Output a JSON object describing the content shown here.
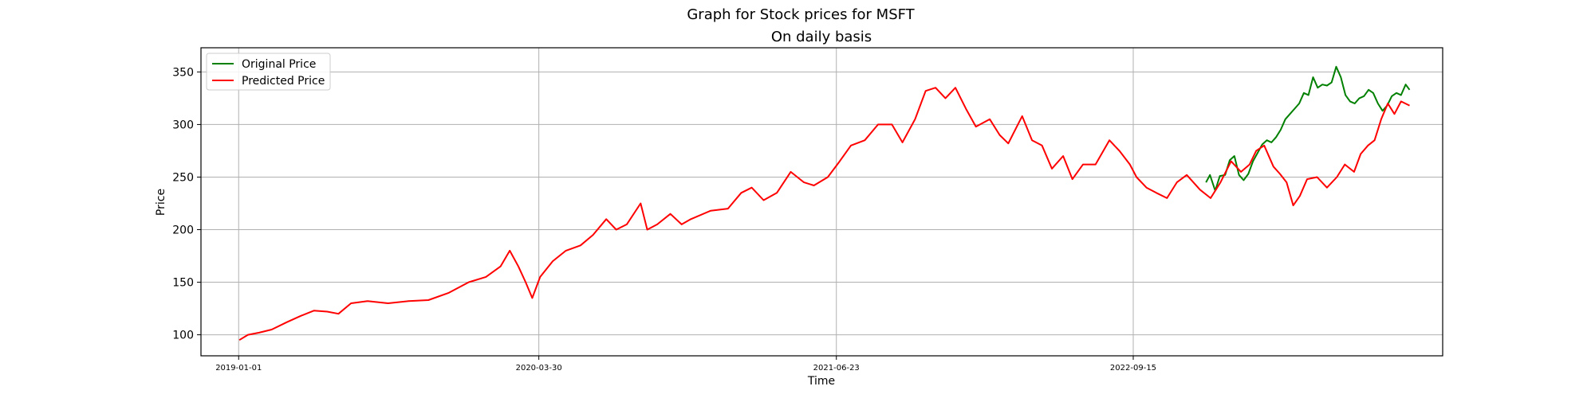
{
  "figure": {
    "suptitle": "Graph for Stock prices for MSFT"
  },
  "chart_data": {
    "type": "line",
    "title": "On daily basis",
    "xlabel": "Time",
    "ylabel": "Price",
    "x_type": "date",
    "xlim": [
      "2018-11-05",
      "2023-12-27"
    ],
    "ylim": [
      80,
      373
    ],
    "xticks": [
      "2019-01-01",
      "2020-03-30",
      "2021-06-23",
      "2022-09-15"
    ],
    "yticks": [
      100,
      150,
      200,
      250,
      300,
      350
    ],
    "grid": true,
    "legend_position": "top-left",
    "series": [
      {
        "name": "Original Price",
        "color": "#008000",
        "points": [
          [
            "2023-01-03",
            245
          ],
          [
            "2023-01-09",
            252
          ],
          [
            "2023-01-17",
            237
          ],
          [
            "2023-01-24",
            251
          ],
          [
            "2023-02-01",
            252
          ],
          [
            "2023-02-08",
            266
          ],
          [
            "2023-02-15",
            270
          ],
          [
            "2023-02-22",
            252
          ],
          [
            "2023-03-01",
            247
          ],
          [
            "2023-03-08",
            253
          ],
          [
            "2023-03-15",
            265
          ],
          [
            "2023-03-22",
            273
          ],
          [
            "2023-03-29",
            281
          ],
          [
            "2023-04-05",
            285
          ],
          [
            "2023-04-12",
            283
          ],
          [
            "2023-04-19",
            288
          ],
          [
            "2023-04-26",
            295
          ],
          [
            "2023-05-03",
            305
          ],
          [
            "2023-05-10",
            310
          ],
          [
            "2023-05-17",
            315
          ],
          [
            "2023-05-24",
            320
          ],
          [
            "2023-05-31",
            330
          ],
          [
            "2023-06-07",
            328
          ],
          [
            "2023-06-14",
            345
          ],
          [
            "2023-06-21",
            335
          ],
          [
            "2023-06-28",
            338
          ],
          [
            "2023-07-05",
            337
          ],
          [
            "2023-07-12",
            340
          ],
          [
            "2023-07-19",
            355
          ],
          [
            "2023-07-26",
            345
          ],
          [
            "2023-08-02",
            328
          ],
          [
            "2023-08-09",
            322
          ],
          [
            "2023-08-16",
            320
          ],
          [
            "2023-08-23",
            325
          ],
          [
            "2023-08-30",
            327
          ],
          [
            "2023-09-06",
            333
          ],
          [
            "2023-09-13",
            330
          ],
          [
            "2023-09-20",
            320
          ],
          [
            "2023-09-27",
            313
          ],
          [
            "2023-10-04",
            318
          ],
          [
            "2023-10-11",
            327
          ],
          [
            "2023-10-18",
            330
          ],
          [
            "2023-10-25",
            328
          ],
          [
            "2023-11-01",
            338
          ],
          [
            "2023-11-07",
            333
          ]
        ]
      },
      {
        "name": "Predicted Price",
        "color": "#ff0000",
        "points": [
          [
            "2019-01-02",
            95
          ],
          [
            "2019-01-15",
            100
          ],
          [
            "2019-02-01",
            102
          ],
          [
            "2019-02-20",
            105
          ],
          [
            "2019-03-15",
            112
          ],
          [
            "2019-04-05",
            118
          ],
          [
            "2019-04-25",
            123
          ],
          [
            "2019-05-15",
            122
          ],
          [
            "2019-06-01",
            120
          ],
          [
            "2019-06-20",
            130
          ],
          [
            "2019-07-15",
            132
          ],
          [
            "2019-08-15",
            130
          ],
          [
            "2019-09-15",
            132
          ],
          [
            "2019-10-15",
            133
          ],
          [
            "2019-11-15",
            140
          ],
          [
            "2019-12-15",
            150
          ],
          [
            "2020-01-10",
            155
          ],
          [
            "2020-02-01",
            165
          ],
          [
            "2020-02-15",
            180
          ],
          [
            "2020-02-28",
            165
          ],
          [
            "2020-03-10",
            150
          ],
          [
            "2020-03-20",
            135
          ],
          [
            "2020-04-01",
            155
          ],
          [
            "2020-04-20",
            170
          ],
          [
            "2020-05-10",
            180
          ],
          [
            "2020-06-01",
            185
          ],
          [
            "2020-06-20",
            195
          ],
          [
            "2020-07-10",
            210
          ],
          [
            "2020-07-25",
            200
          ],
          [
            "2020-08-10",
            205
          ],
          [
            "2020-08-31",
            225
          ],
          [
            "2020-09-10",
            200
          ],
          [
            "2020-09-25",
            205
          ],
          [
            "2020-10-15",
            215
          ],
          [
            "2020-11-01",
            205
          ],
          [
            "2020-11-15",
            210
          ],
          [
            "2020-12-15",
            218
          ],
          [
            "2021-01-10",
            220
          ],
          [
            "2021-01-30",
            235
          ],
          [
            "2021-02-15",
            240
          ],
          [
            "2021-03-05",
            228
          ],
          [
            "2021-03-25",
            235
          ],
          [
            "2021-04-15",
            255
          ],
          [
            "2021-05-05",
            245
          ],
          [
            "2021-05-20",
            242
          ],
          [
            "2021-06-10",
            250
          ],
          [
            "2021-06-28",
            265
          ],
          [
            "2021-07-15",
            280
          ],
          [
            "2021-08-05",
            285
          ],
          [
            "2021-08-25",
            300
          ],
          [
            "2021-09-15",
            300
          ],
          [
            "2021-10-01",
            283
          ],
          [
            "2021-10-20",
            305
          ],
          [
            "2021-11-05",
            332
          ],
          [
            "2021-11-20",
            335
          ],
          [
            "2021-12-05",
            325
          ],
          [
            "2021-12-20",
            335
          ],
          [
            "2022-01-05",
            315
          ],
          [
            "2022-01-20",
            298
          ],
          [
            "2022-02-10",
            305
          ],
          [
            "2022-02-25",
            290
          ],
          [
            "2022-03-10",
            282
          ],
          [
            "2022-03-31",
            308
          ],
          [
            "2022-04-15",
            285
          ],
          [
            "2022-04-30",
            280
          ],
          [
            "2022-05-15",
            258
          ],
          [
            "2022-06-01",
            270
          ],
          [
            "2022-06-15",
            248
          ],
          [
            "2022-07-01",
            262
          ],
          [
            "2022-07-20",
            262
          ],
          [
            "2022-08-10",
            285
          ],
          [
            "2022-08-25",
            275
          ],
          [
            "2022-09-10",
            262
          ],
          [
            "2022-09-20",
            250
          ],
          [
            "2022-10-05",
            240
          ],
          [
            "2022-10-20",
            235
          ],
          [
            "2022-11-05",
            230
          ],
          [
            "2022-11-20",
            245
          ],
          [
            "2022-12-05",
            252
          ],
          [
            "2022-12-25",
            238
          ],
          [
            "2023-01-10",
            230
          ],
          [
            "2023-01-25",
            245
          ],
          [
            "2023-02-10",
            265
          ],
          [
            "2023-02-25",
            255
          ],
          [
            "2023-03-10",
            262
          ],
          [
            "2023-03-20",
            275
          ],
          [
            "2023-04-01",
            280
          ],
          [
            "2023-04-15",
            260
          ],
          [
            "2023-04-25",
            253
          ],
          [
            "2023-05-05",
            245
          ],
          [
            "2023-05-15",
            223
          ],
          [
            "2023-05-25",
            232
          ],
          [
            "2023-06-05",
            248
          ],
          [
            "2023-06-20",
            250
          ],
          [
            "2023-07-05",
            240
          ],
          [
            "2023-07-20",
            250
          ],
          [
            "2023-08-01",
            262
          ],
          [
            "2023-08-15",
            255
          ],
          [
            "2023-08-25",
            272
          ],
          [
            "2023-09-05",
            280
          ],
          [
            "2023-09-15",
            285
          ],
          [
            "2023-09-25",
            305
          ],
          [
            "2023-10-05",
            320
          ],
          [
            "2023-10-15",
            310
          ],
          [
            "2023-10-25",
            322
          ],
          [
            "2023-11-07",
            318
          ]
        ]
      }
    ]
  }
}
